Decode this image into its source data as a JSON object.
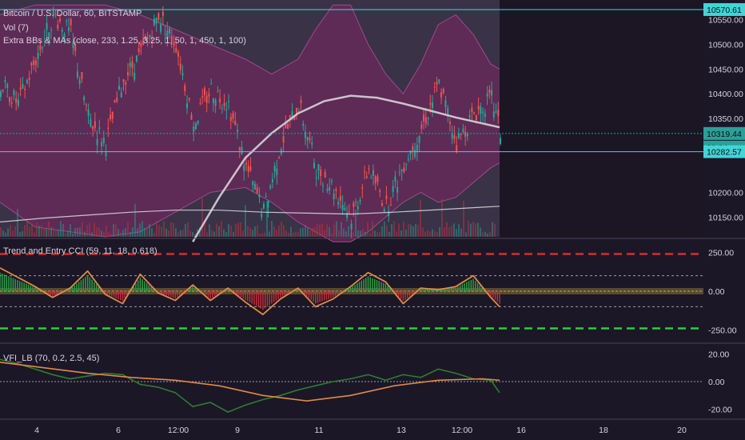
{
  "chart_data": {
    "type": "line",
    "panels": [
      {
        "id": "price",
        "title": "Bitcoin / U.S. Dollar, 60, BITSTAMP",
        "indicators": [
          "Vol (7)",
          "Extra BBs & MAs (close, 233, 1.25, 3.25, 1, 50, 1, 450, 1, 100)"
        ],
        "y_ticks": [
          "10550.00",
          "10500.00",
          "10450.00",
          "10400.00",
          "10350.00",
          "10200.00",
          "10150.00"
        ],
        "ylim": [
          10100,
          10580
        ],
        "price_tags": [
          {
            "value": "10570.61",
            "y": 10570.61,
            "color": "#3fd6d6"
          },
          {
            "value": "10319.44",
            "y": 10319.44,
            "color": "#2aa198"
          },
          {
            "value": "28:34",
            "y": 10300,
            "color": "#2aa198"
          },
          {
            "value": "10282.57",
            "y": 10282.57,
            "color": "#3fd6d6"
          }
        ],
        "series": [
          {
            "name": "close",
            "color": "#26a69a",
            "x": [
              0,
              4,
              8,
              12,
              16,
              20,
              24,
              28,
              32,
              36,
              40,
              44,
              48,
              52,
              56,
              60,
              64,
              68,
              72,
              76,
              80,
              84,
              88,
              92,
              96,
              100,
              104,
              108,
              112,
              114
            ],
            "values": [
              10420,
              10380,
              10470,
              10560,
              10520,
              10350,
              10300,
              10430,
              10480,
              10560,
              10500,
              10340,
              10410,
              10380,
              10250,
              10160,
              10300,
              10380,
              10250,
              10210,
              10150,
              10250,
              10170,
              10260,
              10330,
              10420,
              10300,
              10360,
              10390,
              10320
            ]
          },
          {
            "name": "ma_long",
            "color": "#d8d3dc",
            "x": [
              44,
              50,
              56,
              62,
              68,
              74,
              80,
              86,
              92,
              98,
              104,
              110,
              114
            ],
            "values": [
              10100,
              10190,
              10270,
              10320,
              10360,
              10385,
              10396,
              10392,
              10380,
              10366,
              10352,
              10340,
              10332
            ]
          },
          {
            "name": "ma_flat",
            "color": "#d8d3dc",
            "x": [
              0,
              10,
              20,
              30,
              40,
              50,
              60,
              70,
              80,
              90,
              100,
              110,
              114
            ],
            "values": [
              10140,
              10148,
              10154,
              10160,
              10164,
              10164,
              10160,
              10158,
              10156,
              10160,
              10165,
              10170,
              10172
            ]
          }
        ],
        "upper_band": {
          "x": [
            0,
            8,
            16,
            24,
            32,
            40,
            48,
            56,
            62,
            68,
            72,
            76,
            80,
            84,
            88,
            92,
            96,
            100,
            104,
            108,
            112,
            114
          ],
          "values": [
            10560,
            10580,
            10580,
            10580,
            10560,
            10530,
            10500,
            10470,
            10440,
            10470,
            10530,
            10580,
            10580,
            10500,
            10440,
            10400,
            10460,
            10540,
            10560,
            10520,
            10460,
            10450
          ]
        },
        "lower_band": {
          "x": [
            0,
            8,
            16,
            24,
            32,
            40,
            48,
            56,
            62,
            68,
            72,
            76,
            80,
            84,
            88,
            92,
            96,
            100,
            104,
            108,
            112,
            114
          ],
          "values": [
            10180,
            10130,
            10120,
            10110,
            10120,
            10160,
            10200,
            10210,
            10180,
            10140,
            10120,
            10100,
            10100,
            10120,
            10150,
            10180,
            10200,
            10180,
            10190,
            10220,
            10250,
            10260
          ]
        }
      },
      {
        "id": "cci",
        "title": "Trend and Entry CCI (59, 11, 18, 0.618)",
        "y_ticks": [
          "250.00",
          "0.00",
          "-250.00"
        ],
        "ylim": [
          -330,
          330
        ],
        "levels": [
          {
            "value": 240,
            "color": "#d32f2f",
            "style": "dashed"
          },
          {
            "value": 100,
            "color": "#9e9ab0",
            "style": "dashed"
          },
          {
            "value": 0,
            "color": "#c8a84a",
            "style": "band"
          },
          {
            "value": -100,
            "color": "#9e9ab0",
            "style": "dashed"
          },
          {
            "value": -240,
            "color": "#2ecc40",
            "style": "dashed"
          }
        ],
        "series": [
          {
            "name": "cci_line",
            "color": "#e08a4a",
            "x": [
              0,
              4,
              8,
              12,
              16,
              20,
              24,
              28,
              32,
              36,
              40,
              44,
              48,
              52,
              56,
              60,
              64,
              68,
              72,
              76,
              80,
              84,
              88,
              92,
              96,
              100,
              104,
              108,
              112,
              114
            ],
            "values": [
              150,
              90,
              30,
              -40,
              20,
              130,
              -20,
              -80,
              110,
              -10,
              -60,
              40,
              -60,
              20,
              -70,
              -150,
              -50,
              20,
              -100,
              -50,
              30,
              120,
              60,
              -80,
              20,
              10,
              30,
              100,
              -40,
              -100
            ]
          }
        ]
      },
      {
        "id": "vfi",
        "title": "VFI_LB (70, 0.2, 2.5, 45)",
        "y_ticks": [
          "20.00",
          "0.00",
          "-20.00"
        ],
        "ylim": [
          -26,
          26
        ],
        "series": [
          {
            "name": "vfi",
            "color": "#2e7d32",
            "x": [
              0,
              4,
              8,
              12,
              16,
              20,
              24,
              28,
              32,
              36,
              40,
              44,
              48,
              52,
              56,
              60,
              64,
              68,
              72,
              76,
              80,
              84,
              88,
              92,
              96,
              100,
              104,
              108,
              112,
              114
            ],
            "values": [
              16,
              13,
              9,
              5,
              2,
              4,
              6,
              5,
              -2,
              -4,
              -8,
              -18,
              -15,
              -22,
              -17,
              -13,
              -10,
              -6,
              -3,
              0,
              2,
              5,
              1,
              5,
              3,
              9,
              6,
              2,
              1,
              -8
            ]
          },
          {
            "name": "signal",
            "color": "#e08a4a",
            "x": [
              0,
              10,
              20,
              30,
              40,
              50,
              60,
              70,
              80,
              90,
              100,
              110,
              114
            ],
            "values": [
              14,
              10,
              6,
              3,
              1,
              -3,
              -10,
              -14,
              -10,
              -3,
              1,
              2,
              1
            ]
          }
        ]
      }
    ],
    "x_ticks": [
      "4",
      "6",
      "12:00",
      "9",
      "11",
      "13",
      "12:00",
      "16",
      "18",
      "20"
    ]
  }
}
